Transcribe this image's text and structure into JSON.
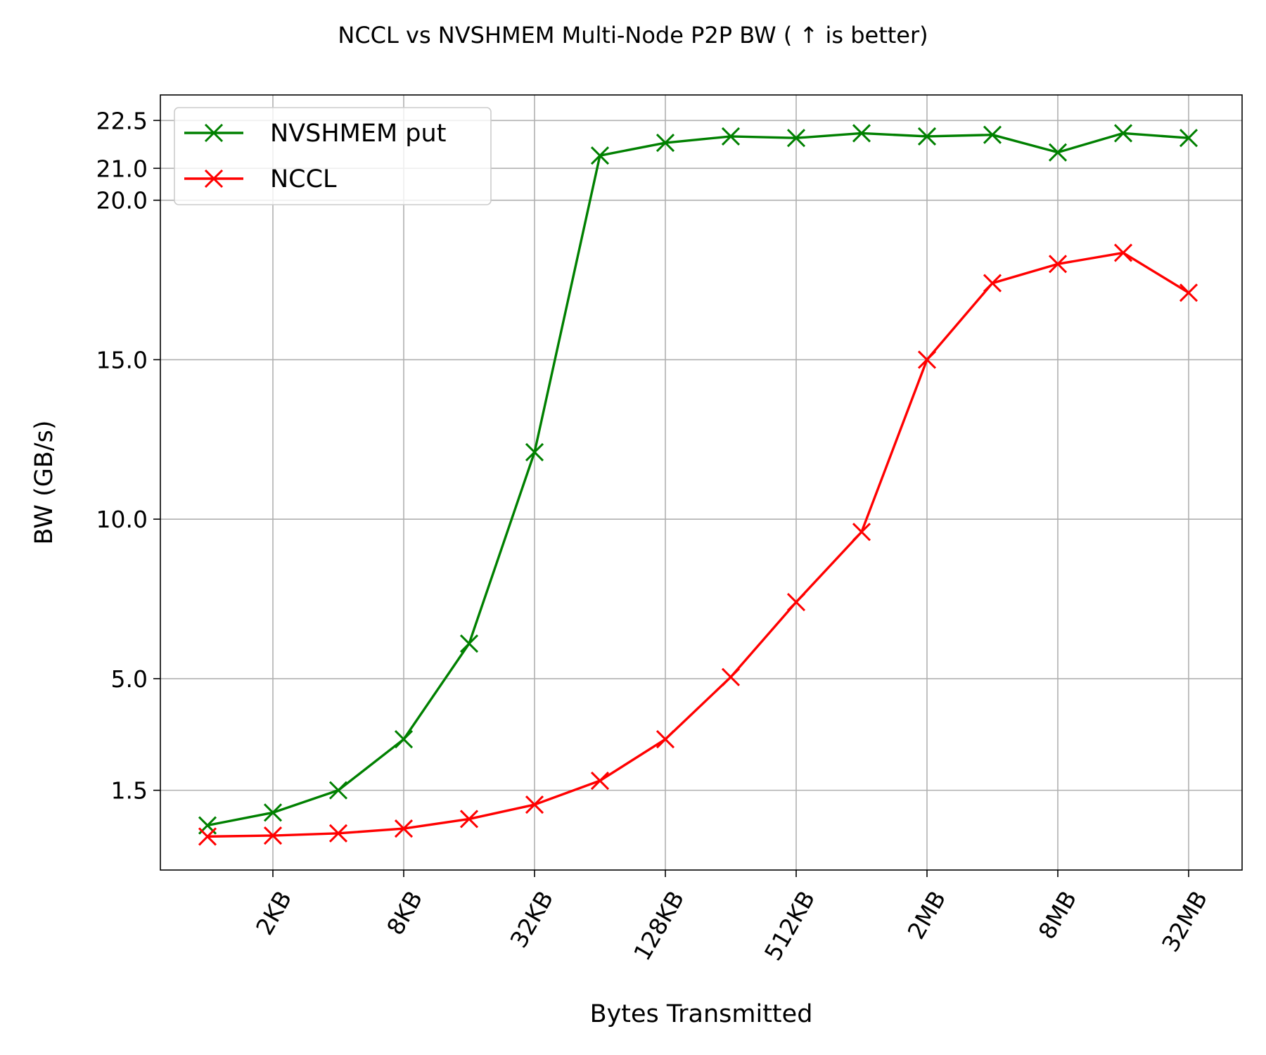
{
  "chart_data": {
    "type": "line",
    "title": "NCCL vs NVSHMEM Multi-Node P2P BW ( ↑  is better)",
    "xlabel": "Bytes Transmitted",
    "ylabel": "BW (GB/s)",
    "x": [
      "1KB",
      "2KB",
      "4KB",
      "8KB",
      "16KB",
      "32KB",
      "64KB",
      "128KB",
      "256KB",
      "512KB",
      "1MB",
      "2MB",
      "4MB",
      "8MB",
      "16MB",
      "32MB"
    ],
    "x_tick_labels": [
      "2KB",
      "8KB",
      "32KB",
      "128KB",
      "512KB",
      "2MB",
      "8MB",
      "32MB"
    ],
    "y_tick_labels": [
      "1.5",
      "5.0",
      "10.0",
      "15.0",
      "20.0",
      "21.0",
      "22.5"
    ],
    "ylim": [
      -1.0,
      23.3
    ],
    "grid": true,
    "legend_position": "top-left",
    "series": [
      {
        "name": "NVSHMEM put",
        "color": "#008000",
        "marker": "x",
        "values": [
          0.4,
          0.8,
          1.5,
          3.1,
          6.1,
          12.1,
          21.4,
          21.8,
          22.0,
          21.95,
          22.1,
          22.0,
          22.05,
          21.5,
          22.1,
          21.95
        ]
      },
      {
        "name": "NCCL",
        "color": "#ff0000",
        "marker": "x",
        "values": [
          0.05,
          0.08,
          0.15,
          0.3,
          0.6,
          1.05,
          1.8,
          3.1,
          5.05,
          7.4,
          9.6,
          15.0,
          17.4,
          18.0,
          18.35,
          17.1
        ]
      }
    ]
  }
}
